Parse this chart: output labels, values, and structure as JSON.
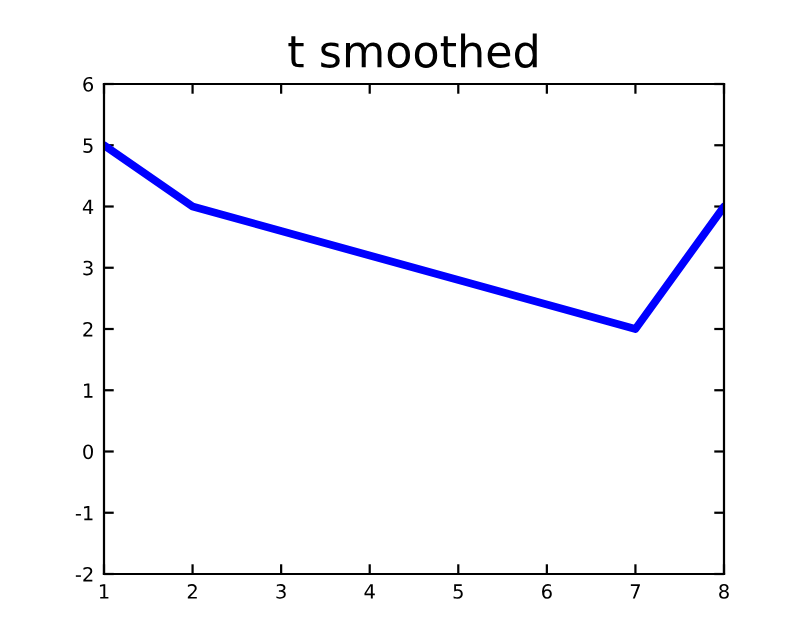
{
  "chart_data": {
    "type": "line",
    "title": "t smoothed",
    "x": [
      1,
      2,
      7,
      8
    ],
    "series": [
      {
        "color": "#0000ff",
        "values": [
          5,
          4,
          2,
          4
        ]
      }
    ],
    "xlim": [
      1,
      8
    ],
    "xticks": [
      1,
      2,
      3,
      4,
      5,
      6,
      7,
      8
    ],
    "ylim": [
      -2,
      6
    ],
    "yticks": [
      -2,
      -1,
      0,
      1,
      2,
      3,
      4,
      5,
      6
    ],
    "grid": false,
    "legend": false,
    "marker": "none",
    "line_style": "solid"
  }
}
